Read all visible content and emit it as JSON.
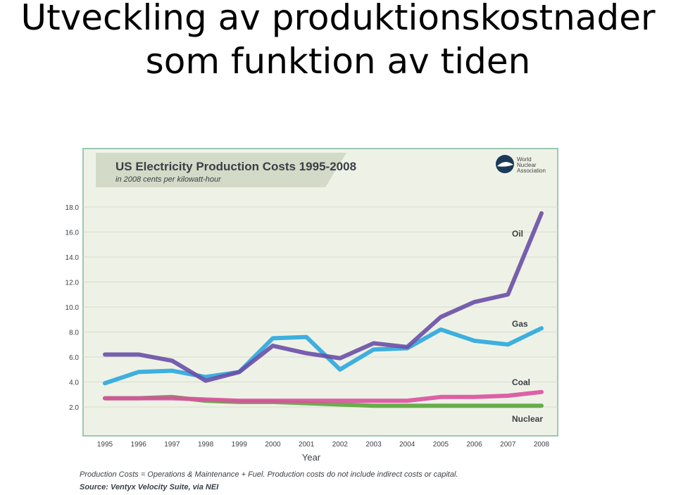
{
  "slide": {
    "title_line1": "Utveckling av produktionskostnader",
    "title_line2": "som funktion av tiden"
  },
  "logo": {
    "line1": "World",
    "line2": "Nuclear",
    "line3": "Association"
  },
  "chart_data": {
    "type": "line",
    "title": "US Electricity Production Costs 1995-2008",
    "subtitle": "in 2008 cents per kilowatt-hour",
    "xlabel": "Year",
    "ylabel": "",
    "x": [
      "1995",
      "1996",
      "1997",
      "1998",
      "1999",
      "2000",
      "2001",
      "2002",
      "2003",
      "2004",
      "2005",
      "2006",
      "2007",
      "2008"
    ],
    "ylim": [
      0,
      18
    ],
    "yticks": [
      "2.0",
      "4.0",
      "6.0",
      "8.0",
      "10.0",
      "12.0",
      "14.0",
      "16.0",
      "18.0"
    ],
    "grid": true,
    "series": [
      {
        "name": "Oil",
        "color": "#6a4fa6",
        "values": [
          6.2,
          6.2,
          5.7,
          4.1,
          4.8,
          6.9,
          6.3,
          5.9,
          7.1,
          6.8,
          9.2,
          10.4,
          11.0,
          17.5
        ]
      },
      {
        "name": "Gas",
        "color": "#2aa7de",
        "values": [
          3.9,
          4.8,
          4.9,
          4.4,
          4.8,
          7.5,
          7.6,
          5.0,
          6.6,
          6.7,
          8.2,
          7.3,
          7.0,
          8.3
        ]
      },
      {
        "name": "Coal",
        "color": "#d9519f",
        "values": [
          2.7,
          2.7,
          2.7,
          2.6,
          2.5,
          2.5,
          2.5,
          2.5,
          2.5,
          2.5,
          2.8,
          2.8,
          2.9,
          3.2
        ]
      },
      {
        "name": "Nuclear",
        "color": "#5aa53a",
        "values": [
          2.7,
          2.7,
          2.8,
          2.5,
          2.4,
          2.4,
          2.3,
          2.2,
          2.1,
          2.1,
          2.1,
          2.1,
          2.1,
          2.1
        ]
      }
    ],
    "footnote": "Production Costs = Operations & Maintenance + Fuel. Production costs do not include indirect costs or capital.",
    "source": "Source: Ventyx Velocity Suite, via NEI"
  }
}
